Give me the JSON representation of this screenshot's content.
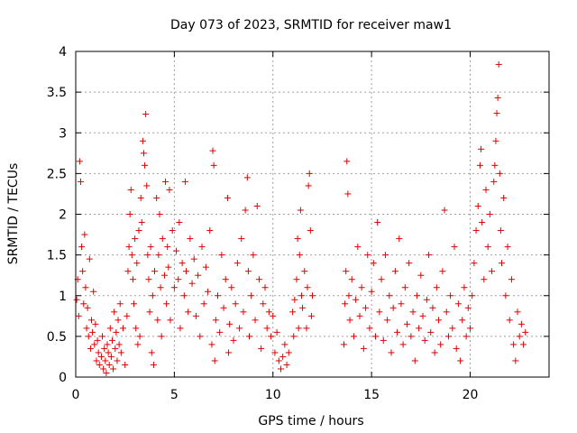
{
  "chart_data": {
    "type": "scatter",
    "title": "Day 073 of 2023, SRMTID for receiver maw1",
    "xlabel": "GPS time / hours",
    "ylabel": "SRMTID / TECUs",
    "xlim": [
      0,
      24
    ],
    "ylim": [
      0,
      4
    ],
    "xticks": [
      0,
      5,
      10,
      15,
      20
    ],
    "xtick_labels": [
      "0",
      "5",
      "10",
      "15",
      "20"
    ],
    "yticks": [
      0,
      0.5,
      1,
      1.5,
      2,
      2.5,
      3,
      3.5,
      4
    ],
    "ytick_labels": [
      "0",
      "0.5",
      "1",
      "1.5",
      "2",
      "2.5",
      "3",
      "3.5",
      "4"
    ],
    "grid": true,
    "marker": "+",
    "color": "#e00000",
    "series": [
      {
        "name": "SRMTID",
        "points": [
          [
            0.05,
            0.95
          ],
          [
            0.1,
            1.2
          ],
          [
            0.15,
            0.75
          ],
          [
            0.2,
            2.65
          ],
          [
            0.25,
            2.4
          ],
          [
            0.3,
            1.6
          ],
          [
            0.35,
            1.3
          ],
          [
            0.4,
            0.9
          ],
          [
            0.45,
            1.75
          ],
          [
            0.5,
            1.1
          ],
          [
            0.55,
            0.6
          ],
          [
            0.6,
            0.85
          ],
          [
            0.65,
            0.5
          ],
          [
            0.7,
            1.45
          ],
          [
            0.75,
            0.35
          ],
          [
            0.8,
            0.7
          ],
          [
            0.85,
            0.55
          ],
          [
            0.9,
            1.05
          ],
          [
            0.95,
            0.4
          ],
          [
            1.0,
            0.65
          ],
          [
            1.05,
            0.2
          ],
          [
            1.1,
            0.45
          ],
          [
            1.15,
            0.3
          ],
          [
            1.2,
            0.15
          ],
          [
            1.3,
            0.25
          ],
          [
            1.35,
            0.5
          ],
          [
            1.4,
            0.1
          ],
          [
            1.45,
            0.35
          ],
          [
            1.5,
            0.2
          ],
          [
            1.55,
            0.05
          ],
          [
            1.6,
            0.4
          ],
          [
            1.65,
            0.3
          ],
          [
            1.7,
            0.15
          ],
          [
            1.75,
            0.6
          ],
          [
            1.8,
            0.25
          ],
          [
            1.85,
            0.45
          ],
          [
            1.9,
            0.1
          ],
          [
            1.95,
            0.8
          ],
          [
            2.0,
            0.35
          ],
          [
            2.05,
            0.55
          ],
          [
            2.1,
            0.2
          ],
          [
            2.15,
            0.7
          ],
          [
            2.2,
            0.4
          ],
          [
            2.25,
            0.9
          ],
          [
            2.3,
            0.3
          ],
          [
            2.4,
            0.6
          ],
          [
            2.5,
            0.15
          ],
          [
            2.6,
            0.75
          ],
          [
            2.65,
            1.3
          ],
          [
            2.7,
            1.6
          ],
          [
            2.75,
            2.0
          ],
          [
            2.8,
            2.3
          ],
          [
            2.85,
            1.5
          ],
          [
            2.9,
            1.2
          ],
          [
            2.95,
            0.9
          ],
          [
            3.0,
            1.7
          ],
          [
            3.05,
            0.6
          ],
          [
            3.1,
            1.4
          ],
          [
            3.15,
            0.4
          ],
          [
            3.2,
            1.8
          ],
          [
            3.25,
            0.5
          ],
          [
            3.3,
            2.2
          ],
          [
            3.35,
            1.9
          ],
          [
            3.4,
            2.9
          ],
          [
            3.45,
            2.75
          ],
          [
            3.5,
            2.6
          ],
          [
            3.55,
            3.23
          ],
          [
            3.6,
            2.35
          ],
          [
            3.65,
            1.5
          ],
          [
            3.7,
            1.2
          ],
          [
            3.75,
            0.8
          ],
          [
            3.8,
            1.6
          ],
          [
            3.85,
            0.3
          ],
          [
            3.9,
            1.0
          ],
          [
            3.95,
            0.15
          ],
          [
            4.0,
            1.3
          ],
          [
            4.1,
            2.2
          ],
          [
            4.15,
            0.7
          ],
          [
            4.2,
            1.5
          ],
          [
            4.25,
            2.0
          ],
          [
            4.3,
            1.1
          ],
          [
            4.35,
            0.5
          ],
          [
            4.4,
            1.7
          ],
          [
            4.5,
            1.25
          ],
          [
            4.55,
            2.4
          ],
          [
            4.6,
            0.9
          ],
          [
            4.65,
            1.6
          ],
          [
            4.7,
            1.35
          ],
          [
            4.75,
            2.3
          ],
          [
            4.8,
            0.7
          ],
          [
            4.9,
            1.8
          ],
          [
            5.0,
            1.1
          ],
          [
            5.1,
            1.55
          ],
          [
            5.2,
            1.2
          ],
          [
            5.25,
            1.9
          ],
          [
            5.3,
            0.6
          ],
          [
            5.4,
            1.4
          ],
          [
            5.5,
            1.0
          ],
          [
            5.55,
            2.4
          ],
          [
            5.6,
            1.3
          ],
          [
            5.7,
            0.8
          ],
          [
            5.8,
            1.7
          ],
          [
            5.9,
            1.15
          ],
          [
            6.0,
            1.45
          ],
          [
            6.1,
            0.75
          ],
          [
            6.2,
            1.25
          ],
          [
            6.3,
            0.5
          ],
          [
            6.4,
            1.6
          ],
          [
            6.5,
            0.9
          ],
          [
            6.6,
            1.35
          ],
          [
            6.7,
            1.05
          ],
          [
            6.8,
            1.8
          ],
          [
            6.9,
            0.4
          ],
          [
            6.95,
            2.78
          ],
          [
            7.0,
            2.6
          ],
          [
            7.05,
            0.2
          ],
          [
            7.1,
            0.7
          ],
          [
            7.2,
            1.0
          ],
          [
            7.3,
            0.55
          ],
          [
            7.4,
            1.5
          ],
          [
            7.5,
            0.85
          ],
          [
            7.6,
            1.2
          ],
          [
            7.7,
            2.2
          ],
          [
            7.75,
            0.3
          ],
          [
            7.8,
            0.65
          ],
          [
            7.9,
            1.1
          ],
          [
            8.0,
            0.45
          ],
          [
            8.1,
            0.9
          ],
          [
            8.2,
            1.4
          ],
          [
            8.3,
            0.6
          ],
          [
            8.4,
            1.7
          ],
          [
            8.5,
            0.8
          ],
          [
            8.6,
            2.05
          ],
          [
            8.7,
            2.45
          ],
          [
            8.75,
            1.3
          ],
          [
            8.8,
            0.5
          ],
          [
            8.9,
            1.0
          ],
          [
            9.0,
            1.5
          ],
          [
            9.1,
            0.7
          ],
          [
            9.2,
            2.1
          ],
          [
            9.3,
            1.2
          ],
          [
            9.4,
            0.35
          ],
          [
            9.5,
            0.9
          ],
          [
            9.6,
            1.1
          ],
          [
            9.7,
            0.6
          ],
          [
            9.8,
            0.8
          ],
          [
            9.9,
            0.5
          ],
          [
            10.0,
            0.75
          ],
          [
            10.1,
            0.3
          ],
          [
            10.2,
            0.55
          ],
          [
            10.3,
            0.2
          ],
          [
            10.4,
            0.1
          ],
          [
            10.5,
            0.25
          ],
          [
            10.6,
            0.4
          ],
          [
            10.7,
            0.15
          ],
          [
            10.8,
            0.3
          ],
          [
            11.0,
            0.8
          ],
          [
            11.05,
            0.5
          ],
          [
            11.1,
            0.95
          ],
          [
            11.2,
            1.2
          ],
          [
            11.25,
            1.7
          ],
          [
            11.3,
            0.6
          ],
          [
            11.35,
            1.5
          ],
          [
            11.4,
            2.05
          ],
          [
            11.45,
            1.0
          ],
          [
            11.5,
            0.85
          ],
          [
            11.6,
            1.3
          ],
          [
            11.7,
            0.6
          ],
          [
            11.75,
            1.1
          ],
          [
            11.8,
            2.35
          ],
          [
            11.85,
            2.5
          ],
          [
            11.9,
            1.8
          ],
          [
            11.95,
            0.75
          ],
          [
            12.0,
            1.0
          ],
          [
            13.6,
            0.4
          ],
          [
            13.65,
            0.9
          ],
          [
            13.7,
            1.3
          ],
          [
            13.75,
            2.65
          ],
          [
            13.8,
            2.25
          ],
          [
            13.85,
            1.0
          ],
          [
            13.9,
            0.7
          ],
          [
            14.0,
            1.2
          ],
          [
            14.1,
            0.5
          ],
          [
            14.2,
            0.95
          ],
          [
            14.3,
            1.6
          ],
          [
            14.4,
            0.75
          ],
          [
            14.5,
            1.1
          ],
          [
            14.6,
            0.35
          ],
          [
            14.7,
            0.85
          ],
          [
            14.8,
            1.5
          ],
          [
            14.9,
            0.6
          ],
          [
            15.0,
            1.05
          ],
          [
            15.1,
            1.4
          ],
          [
            15.2,
            0.5
          ],
          [
            15.3,
            1.9
          ],
          [
            15.4,
            0.8
          ],
          [
            15.5,
            1.2
          ],
          [
            15.6,
            0.45
          ],
          [
            15.7,
            1.5
          ],
          [
            15.8,
            0.7
          ],
          [
            15.9,
            1.0
          ],
          [
            16.0,
            0.3
          ],
          [
            16.1,
            0.85
          ],
          [
            16.2,
            1.3
          ],
          [
            16.3,
            0.55
          ],
          [
            16.4,
            1.7
          ],
          [
            16.5,
            0.9
          ],
          [
            16.6,
            0.4
          ],
          [
            16.7,
            1.1
          ],
          [
            16.8,
            0.65
          ],
          [
            16.9,
            1.4
          ],
          [
            17.0,
            0.5
          ],
          [
            17.1,
            0.8
          ],
          [
            17.2,
            0.2
          ],
          [
            17.3,
            1.0
          ],
          [
            17.4,
            0.6
          ],
          [
            17.5,
            1.25
          ],
          [
            17.6,
            0.75
          ],
          [
            17.7,
            0.45
          ],
          [
            17.8,
            0.95
          ],
          [
            17.9,
            1.5
          ],
          [
            18.0,
            0.55
          ],
          [
            18.1,
            0.85
          ],
          [
            18.2,
            0.3
          ],
          [
            18.3,
            1.1
          ],
          [
            18.4,
            0.7
          ],
          [
            18.5,
            0.4
          ],
          [
            18.6,
            1.3
          ],
          [
            18.7,
            2.05
          ],
          [
            18.8,
            0.8
          ],
          [
            18.9,
            0.5
          ],
          [
            19.0,
            1.0
          ],
          [
            19.1,
            0.6
          ],
          [
            19.2,
            1.6
          ],
          [
            19.3,
            0.35
          ],
          [
            19.4,
            0.9
          ],
          [
            19.5,
            0.2
          ],
          [
            19.6,
            0.7
          ],
          [
            19.7,
            1.1
          ],
          [
            19.8,
            0.5
          ],
          [
            19.9,
            0.85
          ],
          [
            20.0,
            0.6
          ],
          [
            20.1,
            1.0
          ],
          [
            20.2,
            1.4
          ],
          [
            20.3,
            1.8
          ],
          [
            20.4,
            2.1
          ],
          [
            20.5,
            2.6
          ],
          [
            20.55,
            2.8
          ],
          [
            20.6,
            1.9
          ],
          [
            20.7,
            1.2
          ],
          [
            20.8,
            2.3
          ],
          [
            20.9,
            1.6
          ],
          [
            21.0,
            2.0
          ],
          [
            21.1,
            1.3
          ],
          [
            21.2,
            2.4
          ],
          [
            21.25,
            2.6
          ],
          [
            21.3,
            2.9
          ],
          [
            21.35,
            3.24
          ],
          [
            21.4,
            3.43
          ],
          [
            21.45,
            3.84
          ],
          [
            21.5,
            2.5
          ],
          [
            21.55,
            1.8
          ],
          [
            21.6,
            1.4
          ],
          [
            21.7,
            2.2
          ],
          [
            21.8,
            1.0
          ],
          [
            21.9,
            1.6
          ],
          [
            22.0,
            0.7
          ],
          [
            22.1,
            1.2
          ],
          [
            22.2,
            0.4
          ],
          [
            22.3,
            0.2
          ],
          [
            22.4,
            0.8
          ],
          [
            22.5,
            0.5
          ],
          [
            22.6,
            0.65
          ],
          [
            22.7,
            0.4
          ],
          [
            22.8,
            0.55
          ]
        ]
      }
    ]
  }
}
